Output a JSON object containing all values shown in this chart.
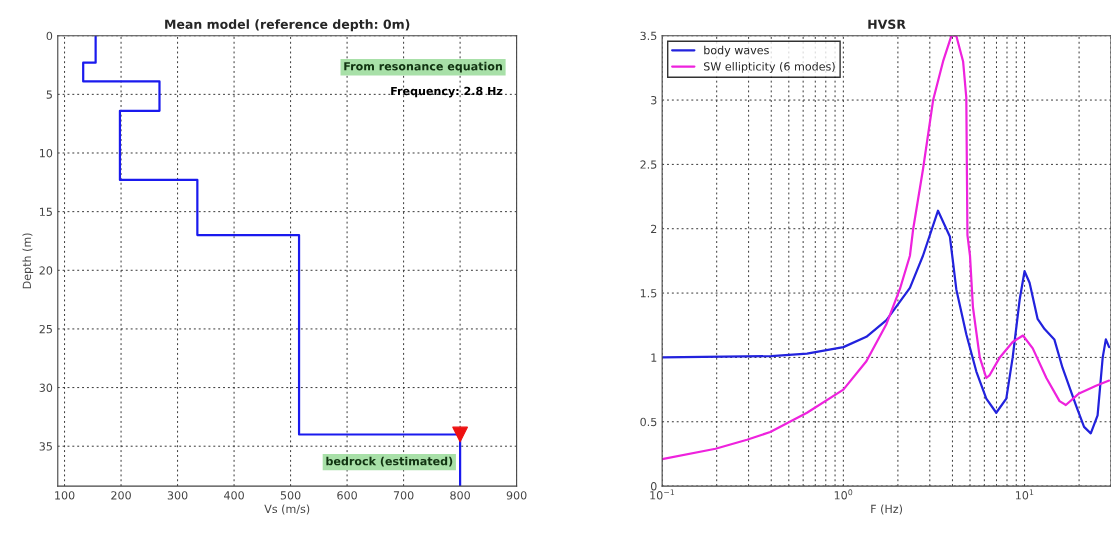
{
  "chart_data": [
    {
      "type": "line",
      "title": "Mean model (reference depth: 0m)",
      "xlabel": "Vs (m/s)",
      "ylabel": "Depth (m)",
      "xlim": [
        88,
        900
      ],
      "xticks": [
        100,
        200,
        300,
        400,
        500,
        600,
        700,
        800,
        900
      ],
      "ylim": [
        38.4,
        0
      ],
      "yticks": [
        0,
        5,
        10,
        15,
        20,
        25,
        30,
        35
      ],
      "grid": true,
      "legend": false,
      "series": [
        {
          "type": "line",
          "color": "#1a1aee",
          "x": [
            155,
            155,
            133,
            133,
            268,
            268,
            198,
            198,
            335,
            335,
            515,
            515,
            800,
            800
          ],
          "values": [
            0,
            2.3,
            2.3,
            3.9,
            3.9,
            6.4,
            6.4,
            12.3,
            12.3,
            17.0,
            17.0,
            34.0,
            34.0,
            38.4
          ]
        },
        {
          "type": "scatter",
          "color": "#ee1111",
          "marker": "triangle",
          "x": [
            800
          ],
          "values": [
            34.0
          ]
        }
      ],
      "annotations": [
        "From resonance equation",
        "Frequency: 2.8 Hz",
        {
          "text": "bedrock (estimated)",
          "x": 800,
          "y": 34.0
        }
      ]
    },
    {
      "type": "line",
      "title": "HVSR",
      "xlabel": "F (Hz)",
      "log": "x",
      "xlim": [
        0.1,
        30
      ],
      "xticks": [
        {
          "value": 0.1,
          "label": "10$^{−1}$"
        },
        {
          "value": 1,
          "label": "10$^{0}$"
        },
        {
          "value": 10,
          "label": "10$^{1}$"
        }
      ],
      "ylim": [
        0,
        3.5
      ],
      "yticks": [
        0,
        0.5,
        1,
        1.5,
        2,
        2.5,
        3,
        3.5
      ],
      "grid": true,
      "legend": "top left",
      "series": [
        {
          "name": "body waves",
          "color": "#2222dd",
          "x": [
            0.1,
            0.4,
            0.63,
            1.0,
            1.34,
            1.73,
            2.33,
            2.59,
            2.75,
            3.33,
            3.87,
            4.03,
            4.2,
            4.77,
            5.42,
            6.15,
            6.98,
            7.93,
            8.6,
            9.4,
            10.0,
            10.66,
            11.8,
            12.9,
            14.6,
            16.2,
            19.2,
            21.3,
            23.2,
            25.3,
            27.0,
            28.1,
            29.3
          ],
          "values": [
            1.0,
            1.01,
            1.03,
            1.08,
            1.16,
            1.29,
            1.54,
            1.7,
            1.79,
            2.14,
            1.94,
            1.74,
            1.53,
            1.18,
            0.89,
            0.68,
            0.57,
            0.68,
            1.0,
            1.45,
            1.67,
            1.58,
            1.3,
            1.22,
            1.14,
            0.92,
            0.63,
            0.46,
            0.41,
            0.55,
            1.0,
            1.14,
            1.08
          ]
        },
        {
          "name": "SW ellipticity (6 modes)",
          "color": "#ee22dd",
          "x": [
            0.1,
            0.197,
            0.294,
            0.395,
            0.63,
            1.0,
            1.34,
            1.73,
            2.05,
            2.33,
            2.43,
            2.75,
            3.13,
            3.55,
            3.95,
            4.2,
            4.58,
            4.77,
            4.84,
            5.0,
            5.19,
            5.66,
            6.15,
            6.4,
            7.3,
            8.6,
            9.8,
            11.1,
            13.2,
            15.6,
            16.9,
            20.0,
            24.8,
            29.3
          ],
          "values": [
            0.21,
            0.29,
            0.36,
            0.42,
            0.57,
            0.75,
            0.97,
            1.26,
            1.53,
            1.79,
            2.0,
            2.46,
            3.0,
            3.3,
            3.5,
            3.5,
            3.3,
            3.02,
            1.95,
            1.79,
            1.39,
            1.0,
            0.84,
            0.86,
            1.0,
            1.12,
            1.17,
            1.07,
            0.84,
            0.66,
            0.63,
            0.72,
            0.78,
            0.82
          ]
        }
      ]
    }
  ]
}
